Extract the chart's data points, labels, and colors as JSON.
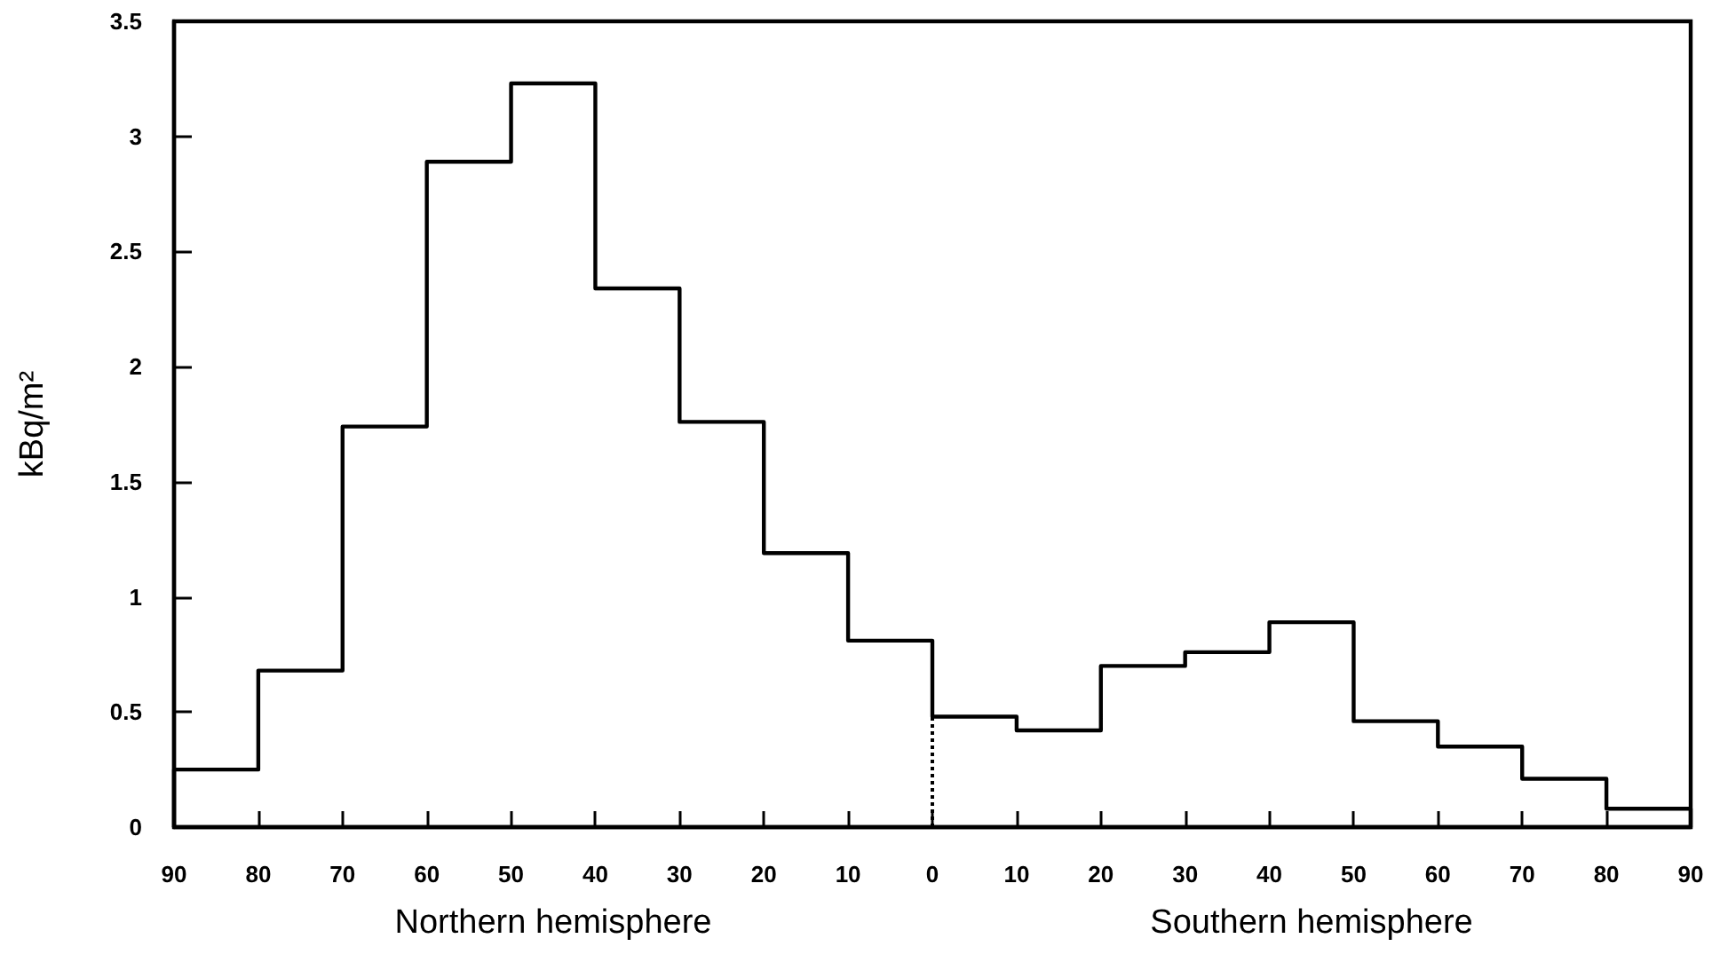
{
  "chart_data": {
    "type": "histogram",
    "ylabel": "kBq/m²",
    "annotations": [
      "Northern hemisphere",
      "Southern hemisphere"
    ],
    "bins": [
      -90,
      -80,
      -70,
      -60,
      -50,
      -40,
      -30,
      -20,
      -10,
      0,
      10,
      20,
      30,
      40,
      50,
      60,
      70,
      80,
      90
    ],
    "values": [
      0.25,
      0.68,
      1.74,
      2.89,
      3.23,
      2.34,
      1.76,
      1.19,
      0.81,
      0.48,
      0.42,
      0.7,
      0.76,
      0.89,
      0.46,
      0.35,
      0.21,
      0.08
    ],
    "color": "#000000",
    "xlim": [
      -90,
      90
    ],
    "xticks": [
      {
        "value": -90,
        "label": "90"
      },
      {
        "value": -80,
        "label": "80"
      },
      {
        "value": -70,
        "label": "70"
      },
      {
        "value": -60,
        "label": "60"
      },
      {
        "value": -50,
        "label": "50"
      },
      {
        "value": -40,
        "label": "40"
      },
      {
        "value": -30,
        "label": "30"
      },
      {
        "value": -20,
        "label": "20"
      },
      {
        "value": -10,
        "label": "10"
      },
      0,
      10,
      20,
      30,
      40,
      50,
      60,
      70,
      80,
      90
    ],
    "ylim": [
      0,
      3.5
    ],
    "yticks": [
      0,
      0.5,
      1,
      1.5,
      2,
      2.5,
      3,
      3.5
    ],
    "ref_lines": [
      {
        "axis": "x",
        "value": 0,
        "line_style": "dotted",
        "color": "#000000"
      }
    ],
    "grid": false
  }
}
